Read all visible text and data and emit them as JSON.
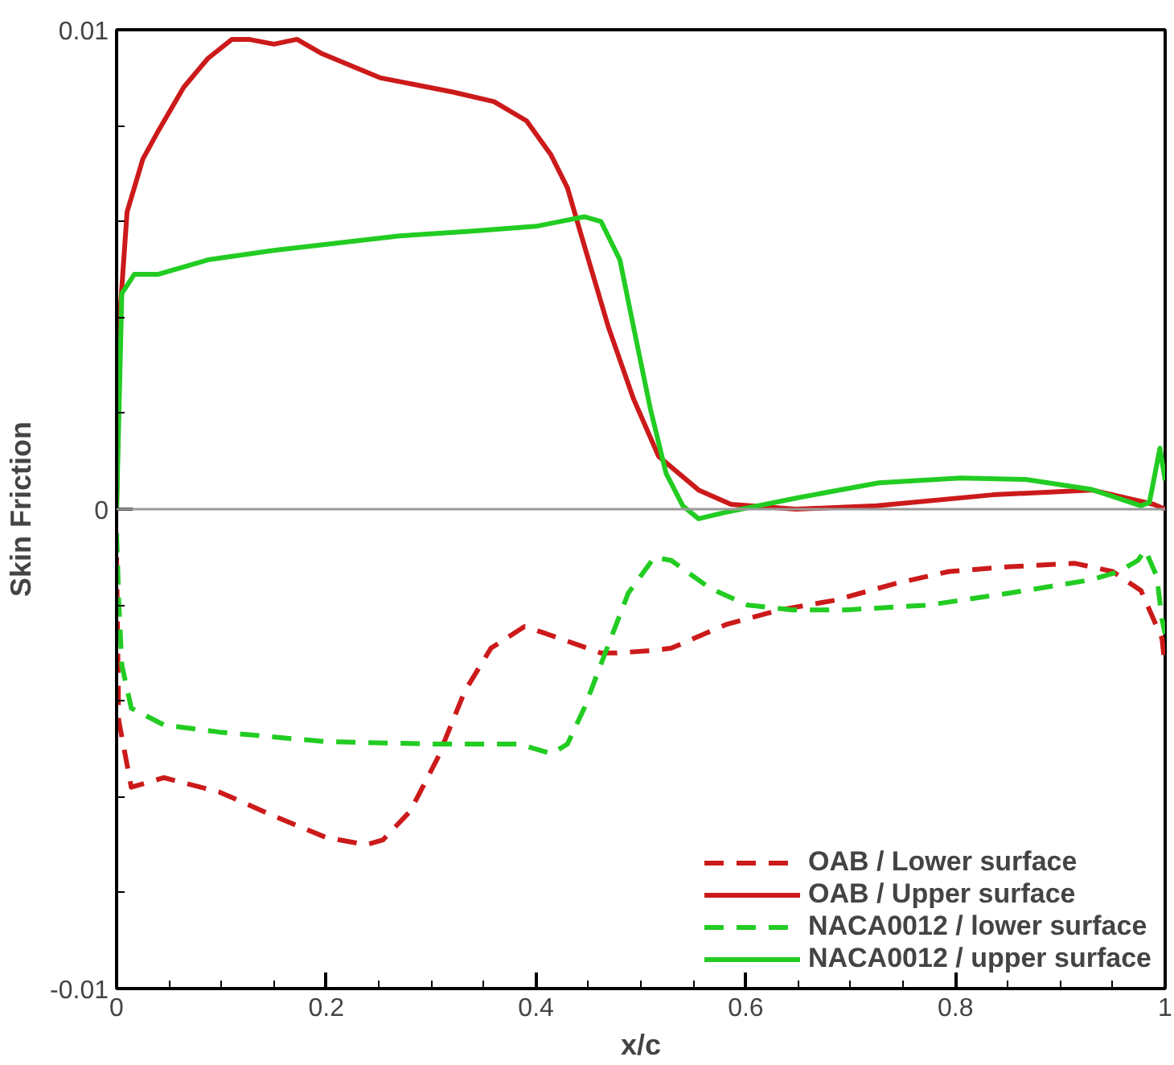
{
  "chart_data": {
    "type": "line",
    "xlabel": "x/c",
    "ylabel": "Skin Friction",
    "xlim": [
      0,
      1
    ],
    "ylim": [
      -0.01,
      0.01
    ],
    "xticks": [
      {
        "value": 0,
        "label": "0"
      },
      {
        "value": 0.05,
        "label": null
      },
      {
        "value": 0.1,
        "label": null
      },
      {
        "value": 0.15,
        "label": null
      },
      {
        "value": 0.2,
        "label": "0.2"
      },
      {
        "value": 0.25,
        "label": null
      },
      {
        "value": 0.3,
        "label": null
      },
      {
        "value": 0.35,
        "label": null
      },
      {
        "value": 0.4,
        "label": "0.4"
      },
      {
        "value": 0.45,
        "label": null
      },
      {
        "value": 0.5,
        "label": null
      },
      {
        "value": 0.55,
        "label": null
      },
      {
        "value": 0.6,
        "label": "0.6"
      },
      {
        "value": 0.65,
        "label": null
      },
      {
        "value": 0.7,
        "label": null
      },
      {
        "value": 0.75,
        "label": null
      },
      {
        "value": 0.8,
        "label": "0.8"
      },
      {
        "value": 0.85,
        "label": null
      },
      {
        "value": 0.9,
        "label": null
      },
      {
        "value": 0.95,
        "label": null
      },
      {
        "value": 1,
        "label": "1"
      }
    ],
    "yticks": [
      {
        "value": -0.01,
        "label": "-0.01"
      },
      {
        "value": -0.008,
        "label": null
      },
      {
        "value": -0.006,
        "label": null
      },
      {
        "value": -0.004,
        "label": null
      },
      {
        "value": -0.002,
        "label": null
      },
      {
        "value": 0,
        "label": "0"
      },
      {
        "value": 0.002,
        "label": null
      },
      {
        "value": 0.004,
        "label": null
      },
      {
        "value": 0.006,
        "label": null
      },
      {
        "value": 0.008,
        "label": null
      },
      {
        "value": 0.01,
        "label": "0.01"
      }
    ],
    "grid": false,
    "legend": "bottom right",
    "ref_lines": [
      {
        "axis": "y",
        "value": 0,
        "color": "#999999"
      }
    ],
    "series": [
      {
        "name": "OAB / Lower surface",
        "color": "#cc1a1a",
        "line_style": "dashed",
        "x": [
          0,
          0.002,
          0.014,
          0.045,
          0.098,
          0.15,
          0.2,
          0.238,
          0.254,
          0.28,
          0.306,
          0.332,
          0.357,
          0.389,
          0.41,
          0.462,
          0.477,
          0.509,
          0.529,
          0.582,
          0.633,
          0.685,
          0.743,
          0.794,
          0.852,
          0.914,
          0.95,
          0.977,
          0.997,
          1.0
        ],
        "values": [
          -0.001,
          -0.0044,
          -0.0058,
          -0.0056,
          -0.0059,
          -0.0064,
          -0.00685,
          -0.007,
          -0.0069,
          -0.0063,
          -0.0052,
          -0.0038,
          -0.0029,
          -0.00245,
          -0.0026,
          -0.003,
          -0.003,
          -0.00295,
          -0.0029,
          -0.0024,
          -0.0021,
          -0.0019,
          -0.00155,
          -0.0013,
          -0.0012,
          -0.00113,
          -0.0013,
          -0.0017,
          -0.0027,
          -0.0033
        ]
      },
      {
        "name": "OAB / Upper surface",
        "color": "#cc1a1a",
        "line_style": "solid",
        "x": [
          0,
          0.003,
          0.01,
          0.025,
          0.04,
          0.064,
          0.087,
          0.11,
          0.126,
          0.15,
          0.172,
          0.196,
          0.251,
          0.321,
          0.36,
          0.391,
          0.414,
          0.43,
          0.446,
          0.469,
          0.493,
          0.517,
          0.555,
          0.586,
          0.648,
          0.725,
          0.836,
          0.93,
          0.989,
          1.0
        ],
        "values": [
          0,
          0.004,
          0.0062,
          0.0073,
          0.0079,
          0.0088,
          0.0094,
          0.0098,
          0.0098,
          0.0097,
          0.0098,
          0.0095,
          0.009,
          0.0087,
          0.0085,
          0.0081,
          0.0074,
          0.0067,
          0.0055,
          0.0038,
          0.0023,
          0.0011,
          0.0004,
          0.0001,
          0,
          7e-05,
          0.0003,
          0.0004,
          0.0001,
          0
        ]
      },
      {
        "name": "NACA0012 / lower surface",
        "color": "#22cc22",
        "line_style": "dashed",
        "x": [
          0,
          0.002,
          0.005,
          0.014,
          0.045,
          0.098,
          0.2,
          0.306,
          0.384,
          0.415,
          0.43,
          0.446,
          0.466,
          0.488,
          0.513,
          0.529,
          0.566,
          0.602,
          0.644,
          0.696,
          0.774,
          0.852,
          0.93,
          0.956,
          0.974,
          0.981,
          0.992,
          0.997,
          1.0
        ],
        "values": [
          -0.0005,
          -0.0019,
          -0.00325,
          -0.00415,
          -0.0045,
          -0.00465,
          -0.00485,
          -0.0049,
          -0.0049,
          -0.0051,
          -0.0049,
          -0.00415,
          -0.003,
          -0.00175,
          -0.001,
          -0.00107,
          -0.00165,
          -0.002,
          -0.0021,
          -0.0021,
          -0.002,
          -0.00175,
          -0.00147,
          -0.0013,
          -0.00107,
          -0.00085,
          -0.0014,
          -0.0023,
          -0.0026
        ]
      },
      {
        "name": "NACA0012 / upper surface",
        "color": "#22cc22",
        "line_style": "solid",
        "x": [
          0,
          0.005,
          0.017,
          0.04,
          0.087,
          0.15,
          0.23,
          0.27,
          0.34,
          0.4,
          0.423,
          0.446,
          0.462,
          0.48,
          0.493,
          0.509,
          0.524,
          0.54,
          0.555,
          0.58,
          0.65,
          0.727,
          0.805,
          0.867,
          0.93,
          0.977,
          0.985,
          0.995,
          1.0
        ],
        "values": [
          0,
          0.0045,
          0.0049,
          0.0049,
          0.0052,
          0.0054,
          0.0056,
          0.0057,
          0.0058,
          0.0059,
          0.006,
          0.0061,
          0.006,
          0.0052,
          0.0038,
          0.0021,
          0.00075,
          7e-05,
          -0.0002,
          -7e-05,
          0.00024,
          0.00055,
          0.00065,
          0.00062,
          0.00041,
          7e-05,
          0.00014,
          0.00127,
          0.0006
        ]
      }
    ]
  }
}
